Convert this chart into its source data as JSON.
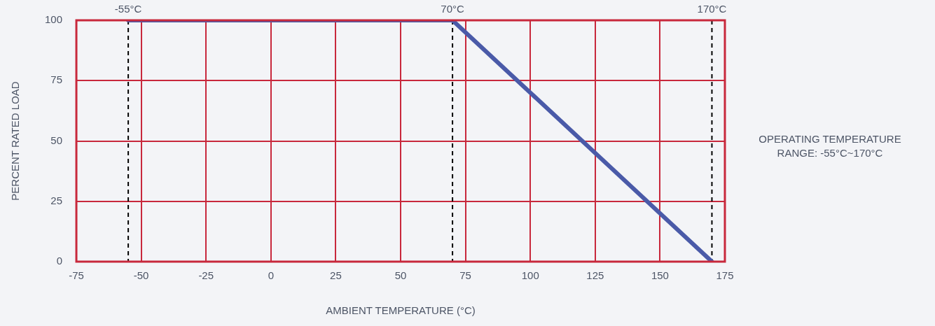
{
  "chart_data": {
    "type": "line",
    "xlabel": "AMBIENT TEMPERATURE (°C)",
    "ylabel": "PERCENT RATED LOAD",
    "x": [
      -55,
      70,
      170
    ],
    "series": [
      {
        "color": "#4a5aa8",
        "values": [
          100,
          100,
          0
        ]
      }
    ],
    "xlim": [
      -75,
      175
    ],
    "xticks": [
      -75,
      -50,
      -25,
      0,
      25,
      50,
      75,
      100,
      125,
      150,
      175
    ],
    "ylim": [
      0,
      100
    ],
    "yticks": [
      0,
      25,
      50,
      75,
      100
    ],
    "grid": true,
    "legend": false,
    "marker": "none",
    "line_style": "solid",
    "ref_lines": [
      {
        "axis": "x",
        "value": -55,
        "label": "-55°C",
        "color": "#000000",
        "line_style": "dashed"
      },
      {
        "axis": "x",
        "value": 70,
        "label": "70°C",
        "color": "#000000",
        "line_style": "dashed"
      },
      {
        "axis": "x",
        "value": 170,
        "label": "170°C",
        "color": "#000000",
        "line_style": "dashed"
      }
    ],
    "annotations": [
      "OPERATING TEMPERATURE RANGE: -55°C~170°C"
    ]
  }
}
